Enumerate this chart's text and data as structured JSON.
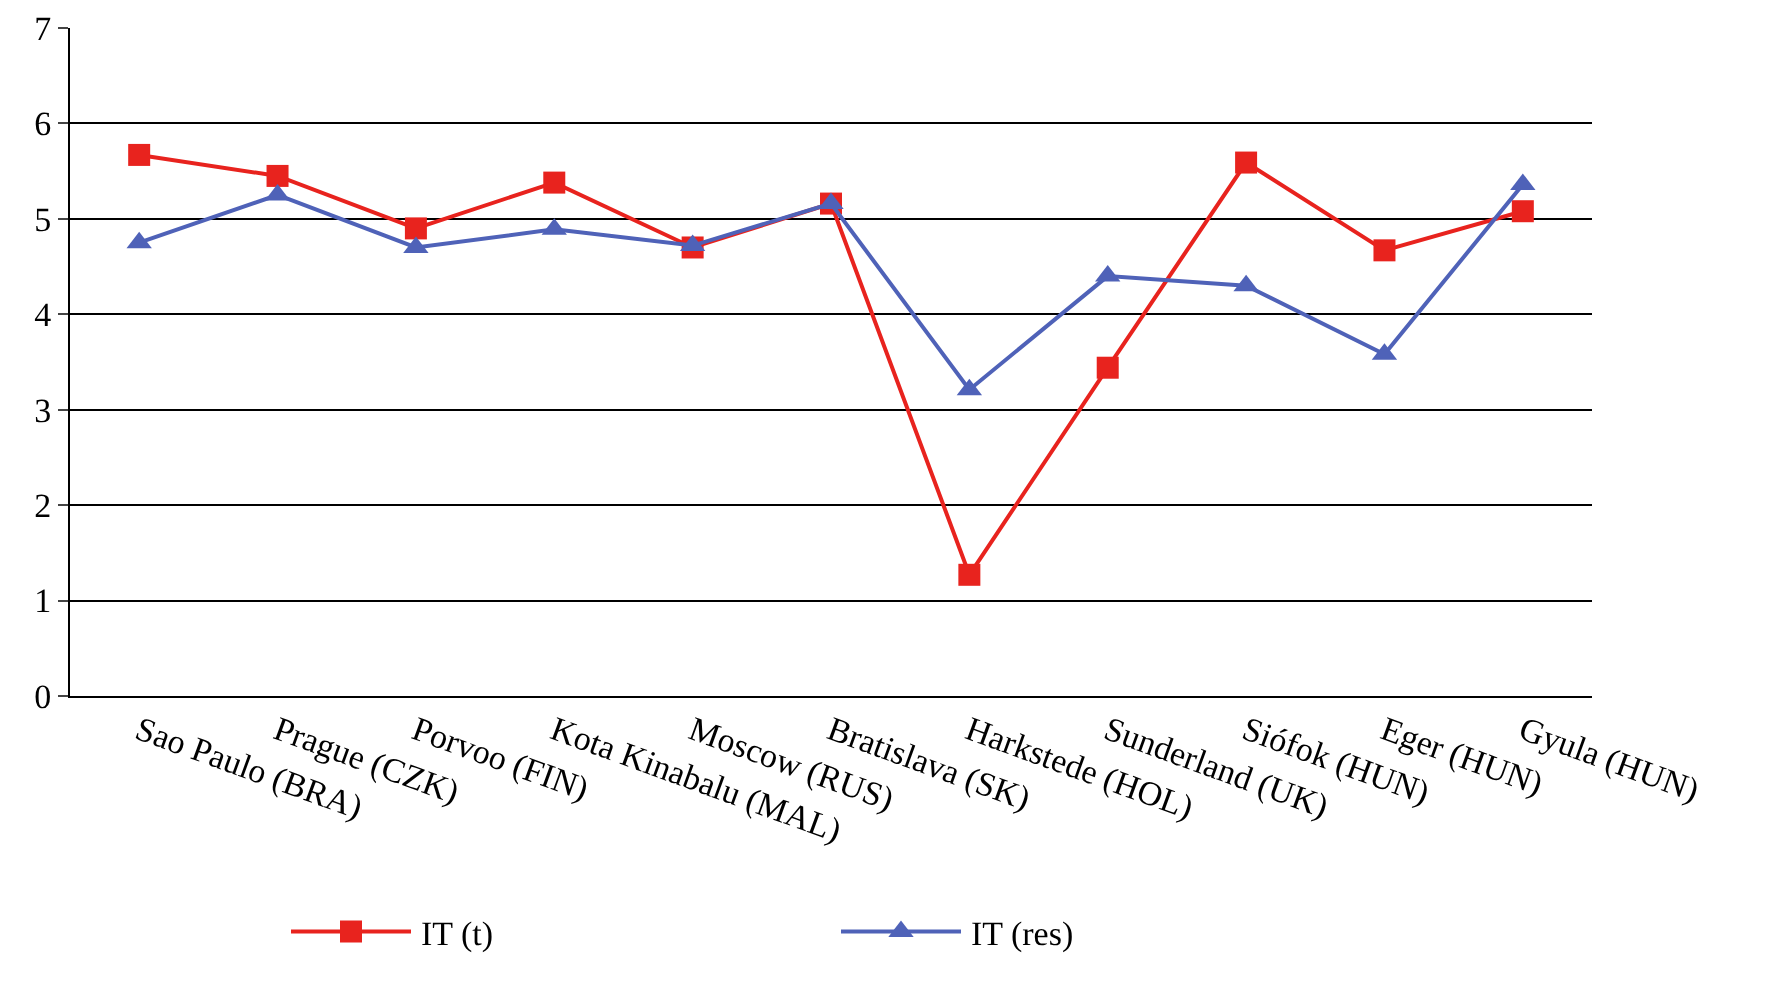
{
  "chart_data": {
    "type": "line",
    "categories": [
      "Sao Paulo (BRA)",
      "Prague (CZK)",
      "Porvoo (FIN)",
      "Kota Kinabalu (MAL)",
      "Moscow (RUS)",
      "Bratislava (SK)",
      "Harkstede (HOL)",
      "Sunderland (UK)",
      "Siófok (HUN)",
      "Eger (HUN)",
      "Gyula (HUN)"
    ],
    "series": [
      {
        "name": "IT (t)",
        "color": "#e8231e",
        "marker": "square",
        "values": [
          5.67,
          5.45,
          4.9,
          5.38,
          4.7,
          5.16,
          1.27,
          3.44,
          5.59,
          4.67,
          5.08
        ]
      },
      {
        "name": "IT (res)",
        "color": "#4f62b8",
        "marker": "triangle",
        "values": [
          4.75,
          5.25,
          4.7,
          4.89,
          4.72,
          5.16,
          3.21,
          4.4,
          4.3,
          3.58,
          5.36
        ]
      }
    ],
    "ylim": [
      0,
      7
    ],
    "yticks": [
      0,
      1,
      2,
      3,
      4,
      5,
      6,
      7
    ],
    "grid": "y",
    "legend": "bottom",
    "line_style": "solid"
  }
}
